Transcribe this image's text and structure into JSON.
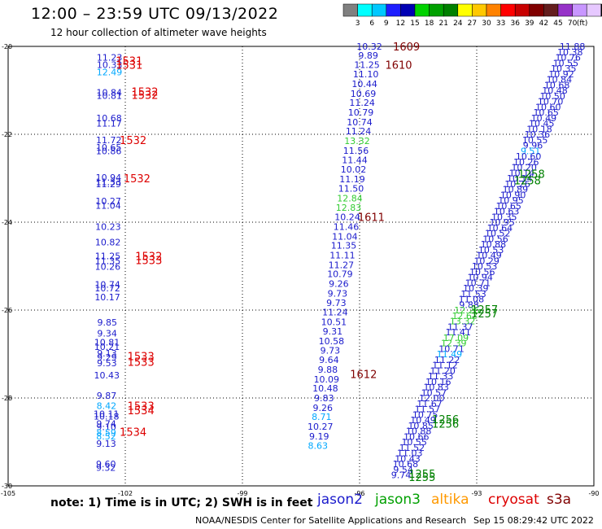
{
  "header": {
    "title": "12:00 – 23:59 UTC 09/13/2022",
    "subtitle": "12 hour collection of altimeter wave heights"
  },
  "footer": {
    "note": "note: 1) Time is in UTC; 2) SWH is in feet",
    "missions": [
      {
        "name": "jason2",
        "color": "#1b1bcc"
      },
      {
        "name": "jason3",
        "color": "#00a000"
      },
      {
        "name": "altika",
        "color": "#ff9900"
      },
      {
        "name": "cryosat",
        "color": "#dd0000"
      },
      {
        "name": "s3a",
        "color": "#800000"
      }
    ],
    "credit": "NOAA/NESDIS Center for Satellite Applications and Research",
    "timestamp": "Sep 15 08:29:42 UTC 2022"
  },
  "colorbar": {
    "labels": [
      "3",
      "6",
      "9",
      "12",
      "15",
      "18",
      "21",
      "24",
      "27",
      "30",
      "33",
      "36",
      "39",
      "42",
      "45",
      "70"
    ],
    "unit": "(ft)",
    "colors": [
      "#808080",
      "#00ffff",
      "#00c8ff",
      "#1e1eff",
      "#0000b4",
      "#00d200",
      "#00a000",
      "#008000",
      "#ffff00",
      "#ffc800",
      "#ff8200",
      "#ff0000",
      "#c80000",
      "#800000",
      "#641e1e",
      "#9632c8",
      "#c896ff",
      "#e6c8ff",
      "#000000"
    ]
  },
  "chart_data": {
    "type": "scatter",
    "xlim": [
      -105,
      -90
    ],
    "ylim": [
      -30,
      -20
    ],
    "x_ticks": [
      -105,
      -102,
      -99,
      -96,
      -93,
      -90
    ],
    "y_ticks": [
      -20,
      -22,
      -24,
      -26,
      -28,
      -30
    ],
    "value_colors": {
      "swh_blue": "#1b1bcc",
      "swh_light": "#00a8ff",
      "swh_green": "#33cc33",
      "time_cryosat": "#dd0000",
      "time_s3a": "#800000",
      "time_jason3": "#008000"
    },
    "tracks": [
      {
        "name": "cryosat",
        "x_start": -102.4,
        "x_end": -102.5,
        "swh": [
          {
            "y": -20.25,
            "v": "11.23"
          },
          {
            "y": -20.42,
            "v": "10.33"
          },
          {
            "y": -20.58,
            "v": "12.49",
            "c": "light"
          },
          {
            "y": -21.05,
            "v": "10.84"
          },
          {
            "y": -21.12,
            "v": "10.81"
          },
          {
            "y": -21.63,
            "v": "10.68"
          },
          {
            "y": -21.75,
            "v": "11.17"
          },
          {
            "y": -22.13,
            "v": "11.72"
          },
          {
            "y": -22.3,
            "v": "10.65"
          },
          {
            "y": -22.38,
            "v": "10.86"
          },
          {
            "y": -22.98,
            "v": "10.94"
          },
          {
            "y": -23.08,
            "v": "11.33"
          },
          {
            "y": -23.13,
            "v": "11.29"
          },
          {
            "y": -23.52,
            "v": "10.27"
          },
          {
            "y": -23.62,
            "v": "11.04"
          },
          {
            "y": -24.1,
            "v": "10.23"
          },
          {
            "y": -24.45,
            "v": "10.82"
          },
          {
            "y": -24.77,
            "v": "11.25"
          },
          {
            "y": -24.88,
            "v": "11.35"
          },
          {
            "y": -25.01,
            "v": "10.26"
          },
          {
            "y": -25.42,
            "v": "10.74"
          },
          {
            "y": -25.5,
            "v": "10.72"
          },
          {
            "y": -25.7,
            "v": "10.17"
          },
          {
            "y": -26.28,
            "v": "9.85"
          },
          {
            "y": -26.53,
            "v": "9.34"
          },
          {
            "y": -26.73,
            "v": "10.81"
          },
          {
            "y": -26.83,
            "v": "10.21"
          },
          {
            "y": -26.98,
            "v": "9.13"
          },
          {
            "y": -27.07,
            "v": "9.29"
          },
          {
            "y": -27.2,
            "v": "9.53"
          },
          {
            "y": -27.48,
            "v": "10.43"
          },
          {
            "y": -27.94,
            "v": "9.87"
          },
          {
            "y": -28.18,
            "v": "8.42",
            "c": "light"
          },
          {
            "y": -28.36,
            "v": "10.11"
          },
          {
            "y": -28.42,
            "v": "10.18"
          },
          {
            "y": -28.58,
            "v": "9.74"
          },
          {
            "y": -28.66,
            "v": "9.10"
          },
          {
            "y": -28.79,
            "v": "8.59",
            "c": "light"
          },
          {
            "y": -28.87,
            "v": "8.52",
            "c": "light"
          },
          {
            "y": -29.04,
            "v": "9.13"
          },
          {
            "y": -29.5,
            "v": "9.60"
          },
          {
            "y": -29.58,
            "v": "9.32"
          }
        ],
        "times": [
          {
            "x": -101.9,
            "y": -20.32,
            "t": "1531"
          },
          {
            "x": -101.9,
            "y": -20.42,
            "t": "1531"
          },
          {
            "x": -101.5,
            "y": -21.03,
            "t": "1532"
          },
          {
            "x": -101.5,
            "y": -21.1,
            "t": "1532"
          },
          {
            "x": -101.8,
            "y": -22.13,
            "t": "1532"
          },
          {
            "x": -101.7,
            "y": -23.0,
            "t": "1532"
          },
          {
            "x": -101.4,
            "y": -24.77,
            "t": "1532"
          },
          {
            "x": -101.4,
            "y": -24.86,
            "t": "1533"
          },
          {
            "x": -101.6,
            "y": -27.05,
            "t": "1533"
          },
          {
            "x": -101.6,
            "y": -27.18,
            "t": "1533"
          },
          {
            "x": -101.6,
            "y": -28.18,
            "t": "1533"
          },
          {
            "x": -101.6,
            "y": -28.28,
            "t": "1534"
          },
          {
            "x": -101.8,
            "y": -28.77,
            "t": "1534"
          }
        ]
      },
      {
        "name": "s3a",
        "x_start": -95.75,
        "x_end": -97.2,
        "swh": [
          {
            "y": -20.0,
            "v": "10.32"
          },
          {
            "y": -20.2,
            "v": "9.89"
          },
          {
            "y": -20.42,
            "v": "11.25"
          },
          {
            "y": -20.63,
            "v": "11.10"
          },
          {
            "y": -20.85,
            "v": "10.44"
          },
          {
            "y": -21.07,
            "v": "10.69"
          },
          {
            "y": -21.28,
            "v": "11.24"
          },
          {
            "y": -21.5,
            "v": "10.79"
          },
          {
            "y": -21.72,
            "v": "10.74"
          },
          {
            "y": -21.93,
            "v": "11.24"
          },
          {
            "y": -22.15,
            "v": "13.32",
            "c": "green"
          },
          {
            "y": -22.37,
            "v": "11.56"
          },
          {
            "y": -22.58,
            "v": "11.44"
          },
          {
            "y": -22.8,
            "v": "10.02"
          },
          {
            "y": -23.02,
            "v": "11.19"
          },
          {
            "y": -23.23,
            "v": "11.50"
          },
          {
            "y": -23.45,
            "v": "12.84",
            "c": "green"
          },
          {
            "y": -23.67,
            "v": "12.83",
            "c": "green"
          },
          {
            "y": -23.88,
            "v": "10.24"
          },
          {
            "y": -24.1,
            "v": "11.46"
          },
          {
            "y": -24.32,
            "v": "11.04"
          },
          {
            "y": -24.53,
            "v": "11.35"
          },
          {
            "y": -24.75,
            "v": "11.11"
          },
          {
            "y": -24.97,
            "v": "11.27"
          },
          {
            "y": -25.18,
            "v": "10.79"
          },
          {
            "y": -25.4,
            "v": "9.26"
          },
          {
            "y": -25.62,
            "v": "9.73"
          },
          {
            "y": -25.83,
            "v": "9.73"
          },
          {
            "y": -26.05,
            "v": "11.24"
          },
          {
            "y": -26.27,
            "v": "10.51"
          },
          {
            "y": -26.48,
            "v": "9.31"
          },
          {
            "y": -26.7,
            "v": "10.58"
          },
          {
            "y": -26.92,
            "v": "9.73"
          },
          {
            "y": -27.13,
            "v": "9.64"
          },
          {
            "y": -27.35,
            "v": "9.88"
          },
          {
            "y": -27.57,
            "v": "10.09"
          },
          {
            "y": -27.78,
            "v": "10.48"
          },
          {
            "y": -28.0,
            "v": "9.83"
          },
          {
            "y": -28.22,
            "v": "9.26"
          },
          {
            "y": -28.43,
            "v": "8.71",
            "c": "light"
          },
          {
            "y": -28.65,
            "v": "10.27"
          },
          {
            "y": -28.87,
            "v": "9.19"
          },
          {
            "y": -29.08,
            "v": "8.63",
            "c": "light"
          }
        ],
        "times": [
          {
            "x": -94.8,
            "y": -20.0,
            "t": "1609"
          },
          {
            "x": -95.0,
            "y": -20.42,
            "t": "1610"
          },
          {
            "x": -95.7,
            "y": -23.88,
            "t": "1611"
          },
          {
            "x": -95.9,
            "y": -27.45,
            "t": "1612"
          }
        ]
      },
      {
        "name": "jason3",
        "x_start": -90.55,
        "x_end": -95.05,
        "swh": [
          {
            "y": -20.0,
            "v": "11.88"
          },
          {
            "y": -20.13,
            "v": "10.38"
          },
          {
            "y": -20.25,
            "v": "10.76"
          },
          {
            "y": -20.38,
            "v": "10.55"
          },
          {
            "y": -20.5,
            "v": "10.35"
          },
          {
            "y": -20.63,
            "v": "10.92"
          },
          {
            "y": -20.75,
            "v": "10.84"
          },
          {
            "y": -20.88,
            "v": "10.68"
          },
          {
            "y": -21.0,
            "v": "10.48"
          },
          {
            "y": -21.13,
            "v": "10.50"
          },
          {
            "y": -21.25,
            "v": "10.70"
          },
          {
            "y": -21.38,
            "v": "10.60"
          },
          {
            "y": -21.5,
            "v": "10.65"
          },
          {
            "y": -21.63,
            "v": "10.49"
          },
          {
            "y": -21.75,
            "v": "10.45"
          },
          {
            "y": -21.88,
            "v": "10.18"
          },
          {
            "y": -22.0,
            "v": "10.36"
          },
          {
            "y": -22.13,
            "v": "10.55"
          },
          {
            "y": -22.25,
            "v": "9.96"
          },
          {
            "y": -22.38,
            "v": "9.51",
            "c": "light"
          },
          {
            "y": -22.5,
            "v": "10.60"
          },
          {
            "y": -22.63,
            "v": "10.26"
          },
          {
            "y": -22.75,
            "v": "10.20"
          },
          {
            "y": -22.88,
            "v": "10.14"
          },
          {
            "y": -23.0,
            "v": "10.14"
          },
          {
            "y": -23.13,
            "v": "10.26"
          },
          {
            "y": -23.25,
            "v": "10.89"
          },
          {
            "y": -23.38,
            "v": "10.90"
          },
          {
            "y": -23.5,
            "v": "10.95"
          },
          {
            "y": -23.63,
            "v": "10.65"
          },
          {
            "y": -23.75,
            "v": "10.63"
          },
          {
            "y": -23.88,
            "v": "10.35"
          },
          {
            "y": -24.0,
            "v": "10.95"
          },
          {
            "y": -24.13,
            "v": "10.64"
          },
          {
            "y": -24.25,
            "v": "10.52"
          },
          {
            "y": -24.38,
            "v": "10.56"
          },
          {
            "y": -24.5,
            "v": "10.88"
          },
          {
            "y": -24.63,
            "v": "10.53"
          },
          {
            "y": -24.75,
            "v": "10.49"
          },
          {
            "y": -24.88,
            "v": "10.29"
          },
          {
            "y": -25.0,
            "v": "10.53"
          },
          {
            "y": -25.13,
            "v": "10.56"
          },
          {
            "y": -25.25,
            "v": "10.94"
          },
          {
            "y": -25.38,
            "v": "10.71"
          },
          {
            "y": -25.5,
            "v": "10.39"
          },
          {
            "y": -25.63,
            "v": "11.53"
          },
          {
            "y": -25.75,
            "v": "11.08"
          },
          {
            "y": -25.88,
            "v": "9.88"
          },
          {
            "y": -26.0,
            "v": "12.26",
            "c": "green"
          },
          {
            "y": -26.13,
            "v": "12.62",
            "c": "green"
          },
          {
            "y": -26.25,
            "v": "13.32",
            "c": "green"
          },
          {
            "y": -26.38,
            "v": "11.37"
          },
          {
            "y": -26.5,
            "v": "11.41"
          },
          {
            "y": -26.63,
            "v": "17.09",
            "c": "green"
          },
          {
            "y": -26.75,
            "v": "12.39",
            "c": "green"
          },
          {
            "y": -26.88,
            "v": "10.71"
          },
          {
            "y": -27.0,
            "v": "11.49",
            "c": "light"
          },
          {
            "y": -27.13,
            "v": "11.22"
          },
          {
            "y": -27.25,
            "v": "11.12"
          },
          {
            "y": -27.38,
            "v": "11.20"
          },
          {
            "y": -27.5,
            "v": "11.33"
          },
          {
            "y": -27.63,
            "v": "10.16"
          },
          {
            "y": -27.75,
            "v": "10.83"
          },
          {
            "y": -27.88,
            "v": "10.57"
          },
          {
            "y": -28.0,
            "v": "12.00"
          },
          {
            "y": -28.13,
            "v": "11.67"
          },
          {
            "y": -28.25,
            "v": "11.57"
          },
          {
            "y": -28.38,
            "v": "10.75"
          },
          {
            "y": -28.5,
            "v": "10.49"
          },
          {
            "y": -28.63,
            "v": "10.85"
          },
          {
            "y": -28.75,
            "v": "10.88"
          },
          {
            "y": -28.88,
            "v": "10.66"
          },
          {
            "y": -29.0,
            "v": "10.55"
          },
          {
            "y": -29.13,
            "v": "11.52"
          },
          {
            "y": -29.25,
            "v": "11.03"
          },
          {
            "y": -29.38,
            "v": "10.43"
          },
          {
            "y": -29.5,
            "v": "10.68"
          },
          {
            "y": -29.63,
            "v": "9.54"
          },
          {
            "y": -29.75,
            "v": "9.74"
          }
        ],
        "times": [
          {
            "x": -91.6,
            "y": -22.9,
            "t": "1258"
          },
          {
            "x": -91.7,
            "y": -23.05,
            "t": "1258"
          },
          {
            "x": -92.8,
            "y": -25.98,
            "t": "1257"
          },
          {
            "x": -92.8,
            "y": -26.07,
            "t": "1257"
          },
          {
            "x": -93.8,
            "y": -28.48,
            "t": "1256"
          },
          {
            "x": -93.8,
            "y": -28.58,
            "t": "1256"
          },
          {
            "x": -94.4,
            "y": -29.72,
            "t": "1255"
          },
          {
            "x": -94.4,
            "y": -29.8,
            "t": "1255"
          }
        ]
      }
    ]
  }
}
